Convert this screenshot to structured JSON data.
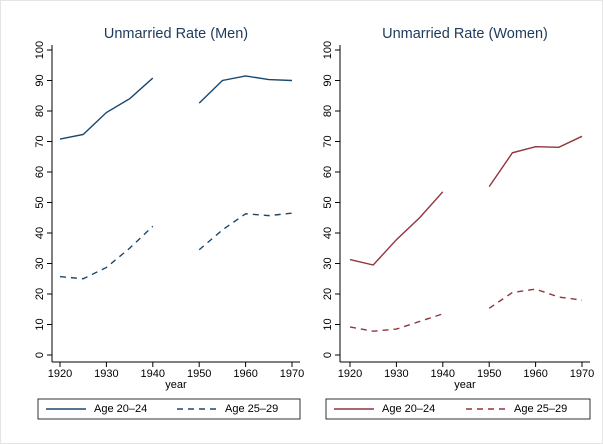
{
  "chart_data": [
    {
      "type": "line",
      "title": "Unmarried Rate (Men)",
      "xlabel": "year",
      "x": [
        1920,
        1925,
        1930,
        1935,
        1940,
        1945,
        1950,
        1955,
        1960,
        1965,
        1970
      ],
      "series": [
        {
          "name": "Age 20–24",
          "color": "#1a476f",
          "line_style": "solid",
          "values": [
            70.8,
            72.3,
            79.5,
            84,
            90.8,
            null,
            82.6,
            90,
            91.5,
            90.3,
            90
          ]
        },
        {
          "name": "Age 25–29",
          "color": "#1a476f",
          "line_style": "dash",
          "values": [
            25.7,
            25,
            28.7,
            35,
            42.2,
            null,
            34.5,
            41,
            46.3,
            45.7,
            46.5
          ]
        }
      ],
      "xlim": [
        1920,
        1970
      ],
      "xticks": [
        1920,
        1930,
        1940,
        1950,
        1960,
        1970
      ],
      "ylim": [
        0,
        100
      ],
      "yticks": [
        0,
        10,
        20,
        30,
        40,
        50,
        60,
        70,
        80,
        90,
        100
      ]
    },
    {
      "type": "line",
      "title": "Unmarried Rate (Women)",
      "xlabel": "year",
      "x": [
        1920,
        1925,
        1930,
        1935,
        1940,
        1945,
        1950,
        1955,
        1960,
        1965,
        1970
      ],
      "series": [
        {
          "name": "Age 20–24",
          "color": "#90353b",
          "line_style": "solid",
          "values": [
            31.3,
            29.5,
            37.8,
            45,
            53.5,
            null,
            55.2,
            66.3,
            68.3,
            68.1,
            71.7
          ]
        },
        {
          "name": "Age 25–29",
          "color": "#90353b",
          "line_style": "dash",
          "values": [
            9.2,
            7.8,
            8.5,
            11,
            13.5,
            null,
            15.3,
            20.5,
            21.6,
            19,
            18
          ]
        }
      ],
      "xlim": [
        1920,
        1970
      ],
      "xticks": [
        1920,
        1930,
        1940,
        1950,
        1960,
        1970
      ],
      "ylim": [
        0,
        100
      ],
      "yticks": [
        0,
        10,
        20,
        30,
        40,
        50,
        60,
        70,
        80,
        90,
        100
      ]
    }
  ]
}
